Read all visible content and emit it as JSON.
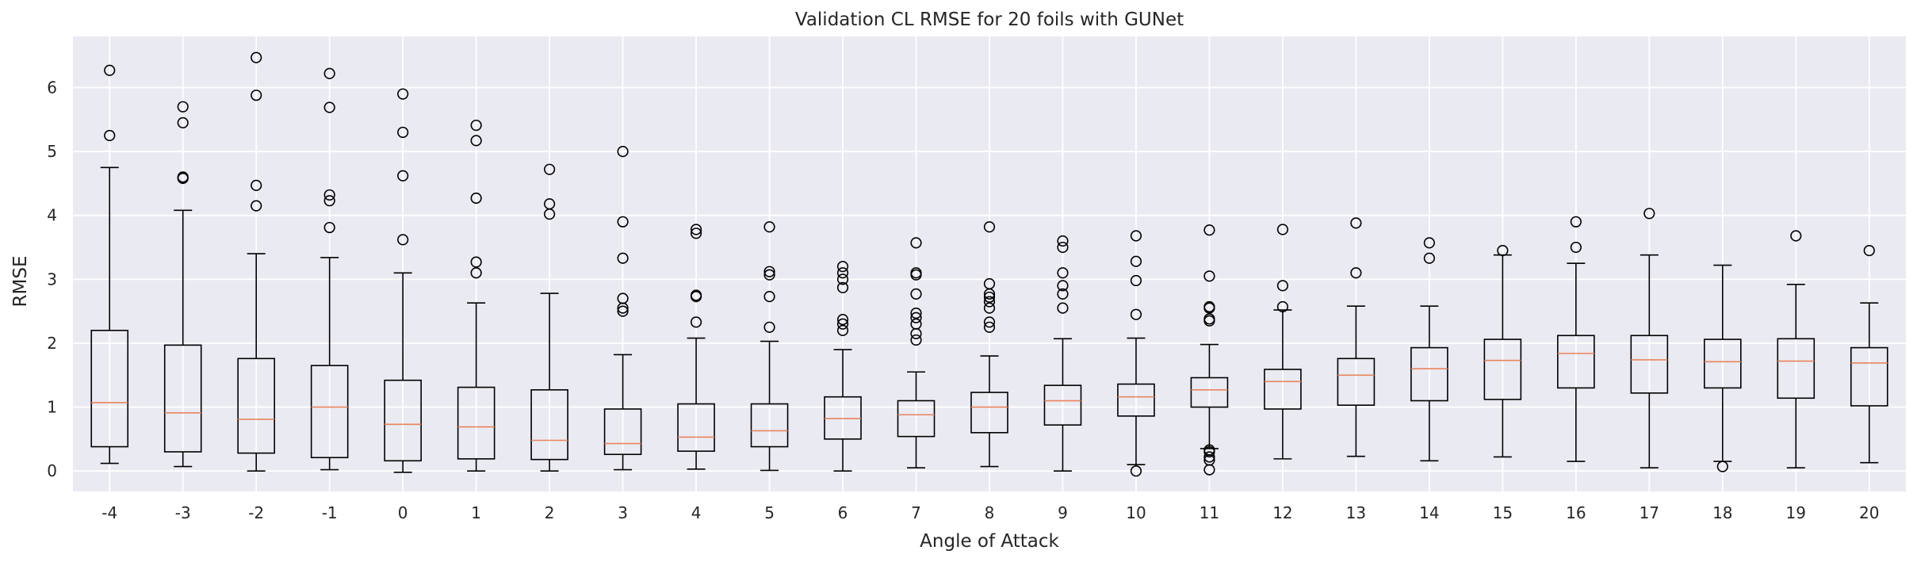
{
  "chart_data": {
    "type": "box",
    "title": "Validation CL RMSE for 20 foils with GUNet",
    "xlabel": "Angle of Attack",
    "ylabel": "RMSE",
    "ylim": [
      -0.32,
      6.8
    ],
    "yticks": [
      0,
      1,
      2,
      3,
      4,
      5,
      6
    ],
    "grid": true,
    "background": "#eaeaf2",
    "box_color": "#000000",
    "median_color": "#e8855c",
    "categories": [
      "-4",
      "-3",
      "-2",
      "-1",
      "0",
      "1",
      "2",
      "3",
      "4",
      "5",
      "6",
      "7",
      "8",
      "9",
      "10",
      "11",
      "12",
      "13",
      "14",
      "15",
      "16",
      "17",
      "18",
      "19",
      "20"
    ],
    "boxes": [
      {
        "x": "-4",
        "whislo": 0.12,
        "q1": 0.38,
        "med": 1.07,
        "q3": 2.2,
        "whishi": 4.75,
        "fliers": [
          5.25,
          6.27
        ]
      },
      {
        "x": "-3",
        "whislo": 0.07,
        "q1": 0.3,
        "med": 0.91,
        "q3": 1.97,
        "whishi": 4.08,
        "fliers": [
          4.58,
          4.6,
          5.45,
          5.7
        ]
      },
      {
        "x": "-2",
        "whislo": 0.0,
        "q1": 0.28,
        "med": 0.81,
        "q3": 1.76,
        "whishi": 3.4,
        "fliers": [
          4.15,
          4.47,
          5.88,
          6.47
        ]
      },
      {
        "x": "-1",
        "whislo": 0.02,
        "q1": 0.21,
        "med": 1.0,
        "q3": 1.65,
        "whishi": 3.34,
        "fliers": [
          3.81,
          4.23,
          4.32,
          5.69,
          6.22
        ]
      },
      {
        "x": "0",
        "whislo": -0.02,
        "q1": 0.16,
        "med": 0.73,
        "q3": 1.42,
        "whishi": 3.1,
        "fliers": [
          3.62,
          4.62,
          5.3,
          5.9
        ]
      },
      {
        "x": "1",
        "whislo": 0.0,
        "q1": 0.19,
        "med": 0.69,
        "q3": 1.31,
        "whishi": 2.63,
        "fliers": [
          3.1,
          3.27,
          4.27,
          5.17,
          5.41
        ]
      },
      {
        "x": "2",
        "whislo": 0.0,
        "q1": 0.18,
        "med": 0.48,
        "q3": 1.27,
        "whishi": 2.78,
        "fliers": [
          4.02,
          4.18,
          4.72
        ]
      },
      {
        "x": "3",
        "whislo": 0.02,
        "q1": 0.26,
        "med": 0.43,
        "q3": 0.97,
        "whishi": 1.82,
        "fliers": [
          2.5,
          2.55,
          2.7,
          3.33,
          3.9,
          5.0
        ]
      },
      {
        "x": "4",
        "whislo": 0.03,
        "q1": 0.31,
        "med": 0.53,
        "q3": 1.05,
        "whishi": 2.08,
        "fliers": [
          2.33,
          2.73,
          2.75,
          3.72,
          3.78
        ]
      },
      {
        "x": "5",
        "whislo": 0.01,
        "q1": 0.38,
        "med": 0.63,
        "q3": 1.05,
        "whishi": 2.03,
        "fliers": [
          2.25,
          2.73,
          3.07,
          3.12,
          3.82
        ]
      },
      {
        "x": "6",
        "whislo": 0.0,
        "q1": 0.5,
        "med": 0.82,
        "q3": 1.16,
        "whishi": 1.9,
        "fliers": [
          2.2,
          2.3,
          2.37,
          2.87,
          3.0,
          3.1,
          3.2
        ]
      },
      {
        "x": "7",
        "whislo": 0.05,
        "q1": 0.54,
        "med": 0.88,
        "q3": 1.1,
        "whishi": 1.55,
        "fliers": [
          2.05,
          2.15,
          2.3,
          2.4,
          2.47,
          2.77,
          3.07,
          3.1,
          3.57
        ]
      },
      {
        "x": "8",
        "whislo": 0.07,
        "q1": 0.6,
        "med": 1.0,
        "q3": 1.23,
        "whishi": 1.8,
        "fliers": [
          2.25,
          2.33,
          2.55,
          2.65,
          2.72,
          2.77,
          2.93,
          3.82
        ]
      },
      {
        "x": "9",
        "whislo": 0.0,
        "q1": 0.72,
        "med": 1.1,
        "q3": 1.34,
        "whishi": 2.07,
        "fliers": [
          2.55,
          2.77,
          2.9,
          3.1,
          3.5,
          3.6
        ]
      },
      {
        "x": "10",
        "whislo": 0.1,
        "q1": 0.86,
        "med": 1.16,
        "q3": 1.36,
        "whishi": 2.08,
        "fliers": [
          0.0,
          2.45,
          2.98,
          3.28,
          3.68
        ]
      },
      {
        "x": "11",
        "whislo": 0.35,
        "q1": 1.0,
        "med": 1.27,
        "q3": 1.46,
        "whishi": 1.98,
        "fliers": [
          0.02,
          0.17,
          0.22,
          0.3,
          0.33,
          2.35,
          2.38,
          2.55,
          2.57,
          3.05,
          3.77
        ]
      },
      {
        "x": "12",
        "whislo": 0.19,
        "q1": 0.97,
        "med": 1.4,
        "q3": 1.59,
        "whishi": 2.52,
        "fliers": [
          2.57,
          2.9,
          3.78
        ]
      },
      {
        "x": "13",
        "whislo": 0.23,
        "q1": 1.03,
        "med": 1.5,
        "q3": 1.76,
        "whishi": 2.58,
        "fliers": [
          3.1,
          3.88
        ]
      },
      {
        "x": "14",
        "whislo": 0.16,
        "q1": 1.1,
        "med": 1.6,
        "q3": 1.93,
        "whishi": 2.58,
        "fliers": [
          3.33,
          3.57
        ]
      },
      {
        "x": "15",
        "whislo": 0.22,
        "q1": 1.12,
        "med": 1.73,
        "q3": 2.06,
        "whishi": 3.38,
        "fliers": [
          3.45
        ]
      },
      {
        "x": "16",
        "whislo": 0.15,
        "q1": 1.3,
        "med": 1.84,
        "q3": 2.12,
        "whishi": 3.25,
        "fliers": [
          3.5,
          3.9
        ]
      },
      {
        "x": "17",
        "whislo": 0.05,
        "q1": 1.22,
        "med": 1.74,
        "q3": 2.12,
        "whishi": 3.38,
        "fliers": [
          4.03
        ]
      },
      {
        "x": "18",
        "whislo": 0.15,
        "q1": 1.3,
        "med": 1.71,
        "q3": 2.06,
        "whishi": 3.22,
        "fliers": [
          0.07
        ]
      },
      {
        "x": "19",
        "whislo": 0.05,
        "q1": 1.14,
        "med": 1.72,
        "q3": 2.07,
        "whishi": 2.92,
        "fliers": [
          3.68
        ]
      },
      {
        "x": "20",
        "whislo": 0.13,
        "q1": 1.02,
        "med": 1.69,
        "q3": 1.93,
        "whishi": 2.63,
        "fliers": [
          3.45
        ]
      }
    ]
  }
}
